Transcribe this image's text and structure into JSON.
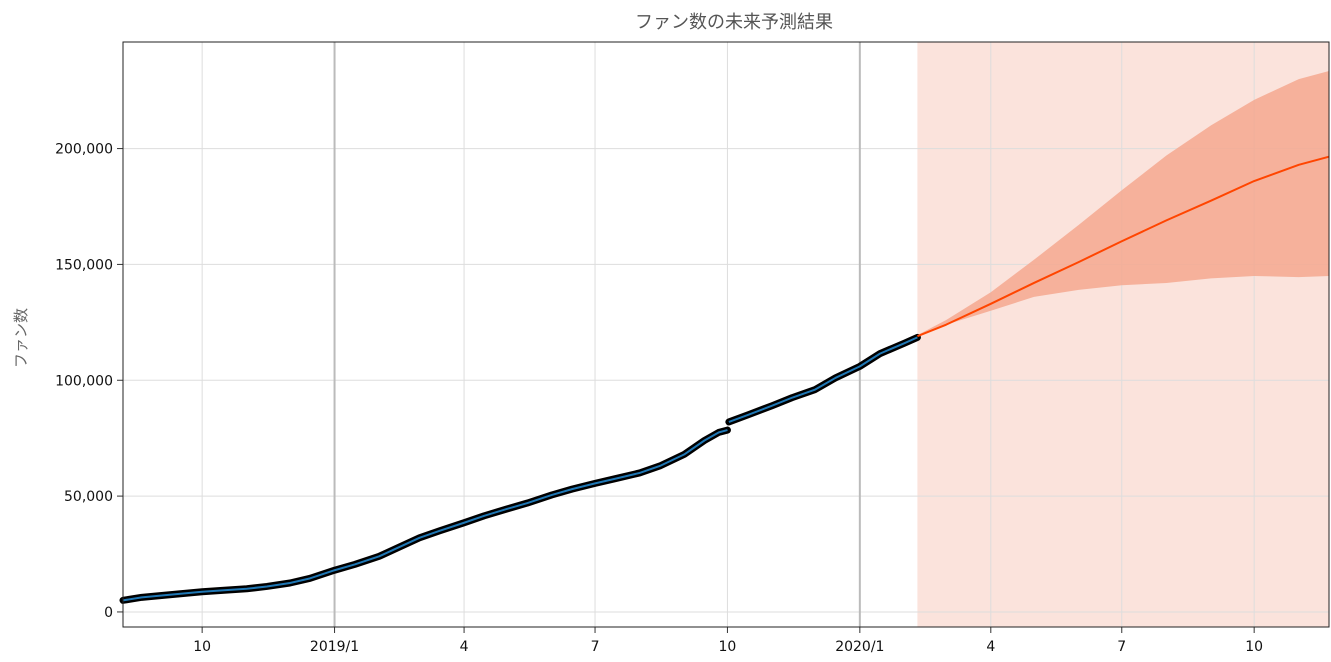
{
  "chart_data": {
    "type": "line",
    "title": "ファン数の未来予測結果",
    "xlabel": "",
    "ylabel": "ファン数",
    "xlim": [
      "2018-08-07",
      "2020-11-22"
    ],
    "ylim": [
      -6500,
      246000
    ],
    "grid": true,
    "legend": "none",
    "x_ticks": [
      {
        "date": "2018-10-01",
        "label": "10",
        "major": false
      },
      {
        "date": "2019-01-01",
        "label": "2019/1",
        "major": true
      },
      {
        "date": "2019-04-01",
        "label": "4",
        "major": false
      },
      {
        "date": "2019-07-01",
        "label": "7",
        "major": false
      },
      {
        "date": "2019-10-01",
        "label": "10",
        "major": false
      },
      {
        "date": "2020-01-01",
        "label": "2020/1",
        "major": true
      },
      {
        "date": "2020-04-01",
        "label": "4",
        "major": false
      },
      {
        "date": "2020-07-01",
        "label": "7",
        "major": false
      },
      {
        "date": "2020-10-01",
        "label": "10",
        "major": false
      }
    ],
    "y_ticks": [
      {
        "value": 0,
        "label": "0"
      },
      {
        "value": 50000,
        "label": "50,000"
      },
      {
        "value": 100000,
        "label": "100,000"
      },
      {
        "value": 150000,
        "label": "150,000"
      },
      {
        "value": 200000,
        "label": "200,000"
      }
    ],
    "forecast_start": "2020-02-10",
    "colors": {
      "observed": "#000000",
      "fitted": "#1f77b4",
      "forecast": "#ff4500",
      "forecast_band": "#f4a88f",
      "forecast_region": "#fbe3dc",
      "grid": "#dddddd",
      "major_grid": "#bbbbbb"
    },
    "series": [
      {
        "kind": "observed",
        "segments": [
          [
            {
              "x": "2018-08-07",
              "y": 5000
            },
            {
              "x": "2018-08-20",
              "y": 6300
            },
            {
              "x": "2018-09-01",
              "y": 7000
            },
            {
              "x": "2018-09-15",
              "y": 7800
            },
            {
              "x": "2018-10-01",
              "y": 8700
            },
            {
              "x": "2018-10-15",
              "y": 9300
            },
            {
              "x": "2018-11-01",
              "y": 10000
            },
            {
              "x": "2018-11-15",
              "y": 11000
            },
            {
              "x": "2018-12-01",
              "y": 12500
            },
            {
              "x": "2018-12-15",
              "y": 14500
            },
            {
              "x": "2019-01-01",
              "y": 18000
            },
            {
              "x": "2019-01-15",
              "y": 20500
            },
            {
              "x": "2019-02-01",
              "y": 24000
            },
            {
              "x": "2019-02-15",
              "y": 28000
            },
            {
              "x": "2019-03-01",
              "y": 32000
            },
            {
              "x": "2019-03-15",
              "y": 35000
            },
            {
              "x": "2019-04-01",
              "y": 38500
            },
            {
              "x": "2019-04-15",
              "y": 41500
            },
            {
              "x": "2019-05-01",
              "y": 44500
            },
            {
              "x": "2019-05-15",
              "y": 47000
            },
            {
              "x": "2019-06-01",
              "y": 50500
            },
            {
              "x": "2019-06-15",
              "y": 53000
            },
            {
              "x": "2019-07-01",
              "y": 55500
            },
            {
              "x": "2019-07-15",
              "y": 57500
            },
            {
              "x": "2019-08-01",
              "y": 60000
            },
            {
              "x": "2019-08-15",
              "y": 63000
            },
            {
              "x": "2019-09-01",
              "y": 68000
            },
            {
              "x": "2019-09-15",
              "y": 74000
            },
            {
              "x": "2019-09-25",
              "y": 77500
            },
            {
              "x": "2019-10-01",
              "y": 78500
            }
          ],
          [
            {
              "x": "2019-10-02",
              "y": 82000
            },
            {
              "x": "2019-10-15",
              "y": 85000
            },
            {
              "x": "2019-11-01",
              "y": 89000
            },
            {
              "x": "2019-11-15",
              "y": 92500
            },
            {
              "x": "2019-12-01",
              "y": 96000
            },
            {
              "x": "2019-12-15",
              "y": 101000
            },
            {
              "x": "2020-01-01",
              "y": 106000
            },
            {
              "x": "2020-01-15",
              "y": 111500
            },
            {
              "x": "2020-02-01",
              "y": 116000
            },
            {
              "x": "2020-02-10",
              "y": 118500
            }
          ]
        ]
      },
      {
        "kind": "forecast",
        "points": [
          {
            "x": "2020-02-10",
            "y": 119000,
            "lower": 119000,
            "upper": 119500
          },
          {
            "x": "2020-03-01",
            "y": 124000,
            "lower": 124000,
            "upper": 126000
          },
          {
            "x": "2020-04-01",
            "y": 133000,
            "lower": 130000,
            "upper": 138000
          },
          {
            "x": "2020-05-01",
            "y": 142000,
            "lower": 136000,
            "upper": 152000
          },
          {
            "x": "2020-06-01",
            "y": 151000,
            "lower": 139000,
            "upper": 167000
          },
          {
            "x": "2020-07-01",
            "y": 160000,
            "lower": 141000,
            "upper": 182000
          },
          {
            "x": "2020-08-01",
            "y": 169000,
            "lower": 142000,
            "upper": 197000
          },
          {
            "x": "2020-09-01",
            "y": 177500,
            "lower": 144000,
            "upper": 210000
          },
          {
            "x": "2020-10-01",
            "y": 186000,
            "lower": 145000,
            "upper": 221000
          },
          {
            "x": "2020-11-01",
            "y": 193000,
            "lower": 144500,
            "upper": 230000
          },
          {
            "x": "2020-11-22",
            "y": 196500,
            "lower": 145000,
            "upper": 233500
          }
        ]
      }
    ]
  }
}
